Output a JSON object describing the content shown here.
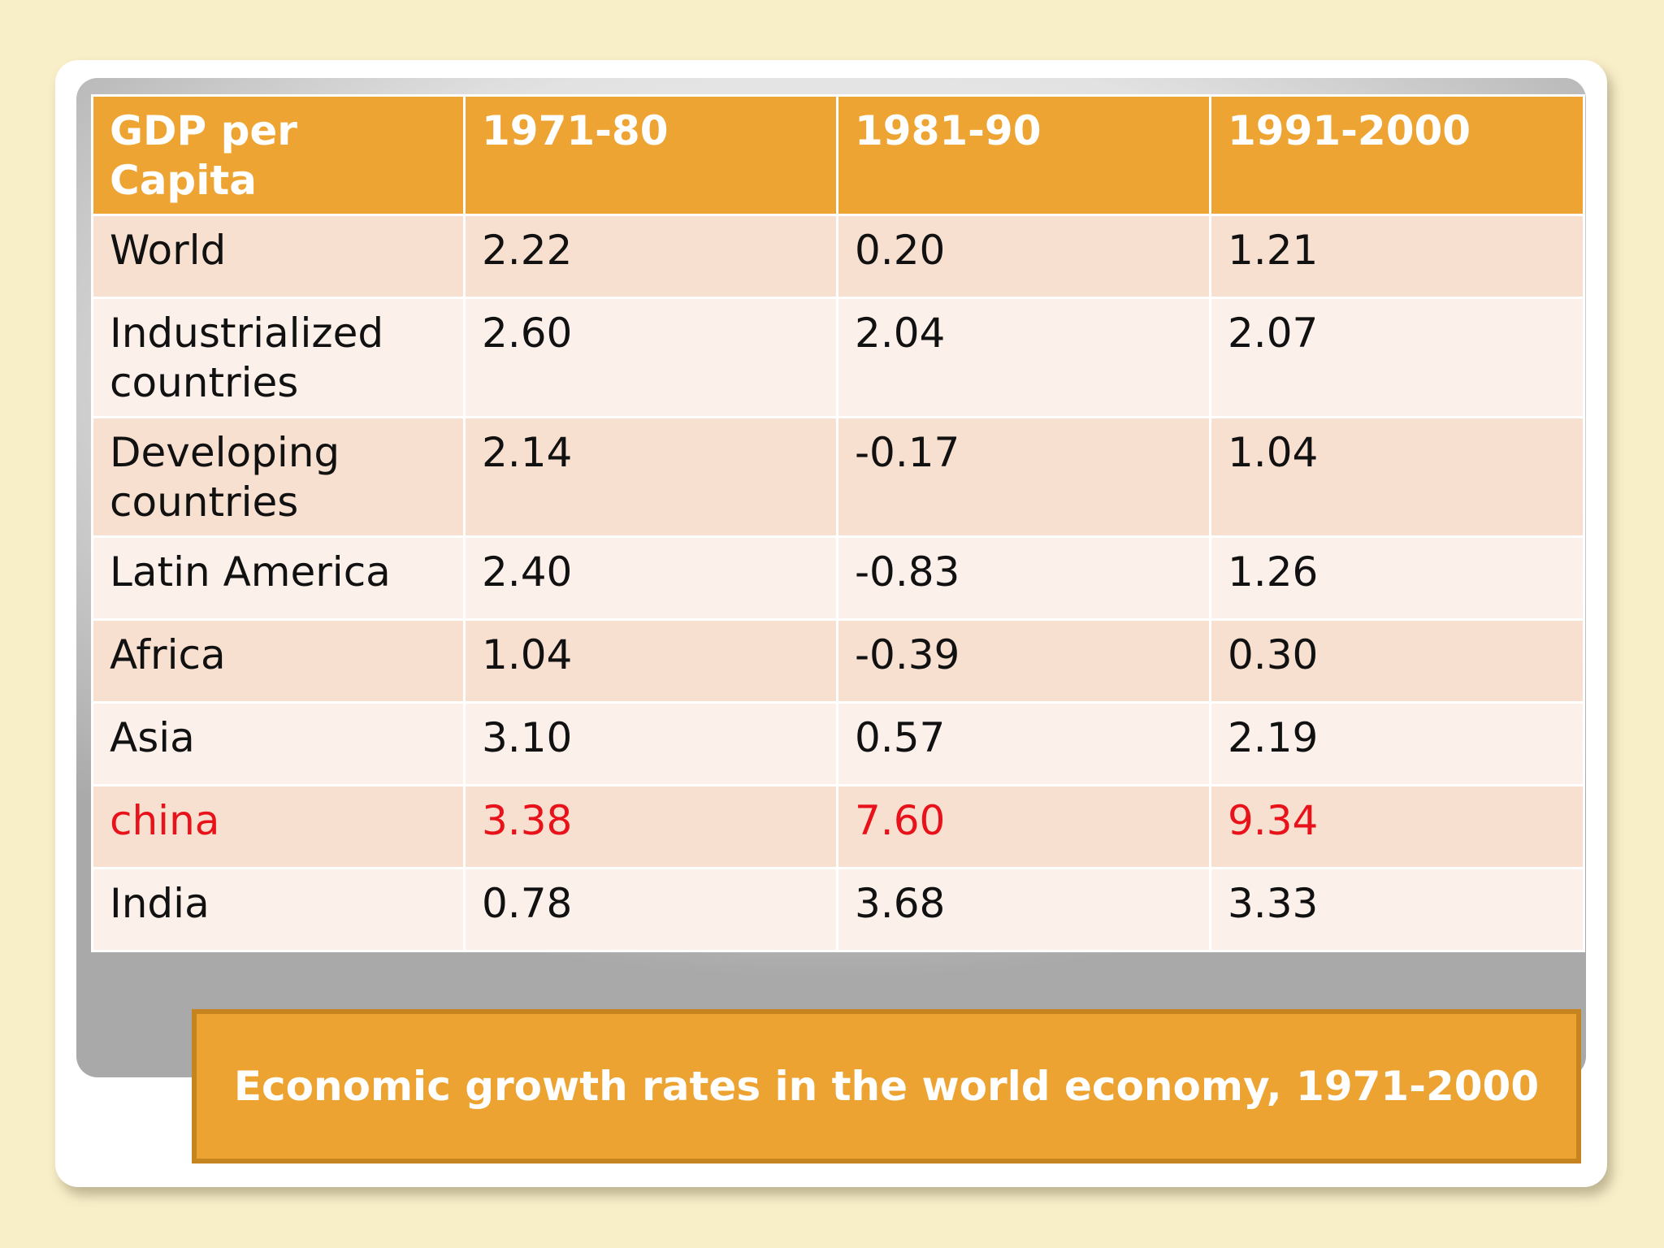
{
  "slide": {
    "caption": "Economic growth rates in the world economy, 1971-2000"
  },
  "table": {
    "headers": [
      "GDP per\nCapita",
      "1971-80",
      "1981-90",
      "1991-2000"
    ],
    "rows": [
      {
        "label": "World",
        "values": [
          "2.22",
          "0.20",
          "1.21"
        ]
      },
      {
        "label": "Industrialized countries",
        "values": [
          "2.60",
          "2.04",
          "2.07"
        ]
      },
      {
        "label": "Developing countries",
        "values": [
          "2.14",
          "-0.17",
          "1.04"
        ]
      },
      {
        "label": "Latin America",
        "values": [
          "2.40",
          "-0.83",
          "1.26"
        ]
      },
      {
        "label": "Africa",
        "values": [
          "1.04",
          "-0.39",
          "0.30"
        ]
      },
      {
        "label": "Asia",
        "values": [
          "3.10",
          "0.57",
          "2.19"
        ]
      },
      {
        "label": "china",
        "values": [
          "3.38",
          "7.60",
          "9.34"
        ]
      },
      {
        "label": "India",
        "values": [
          "0.78",
          "3.68",
          "3.33"
        ]
      }
    ]
  },
  "colors": {
    "header_bg": "#eea432",
    "highlight_text": "#e8121a",
    "slide_bg": "#f8eec8"
  }
}
